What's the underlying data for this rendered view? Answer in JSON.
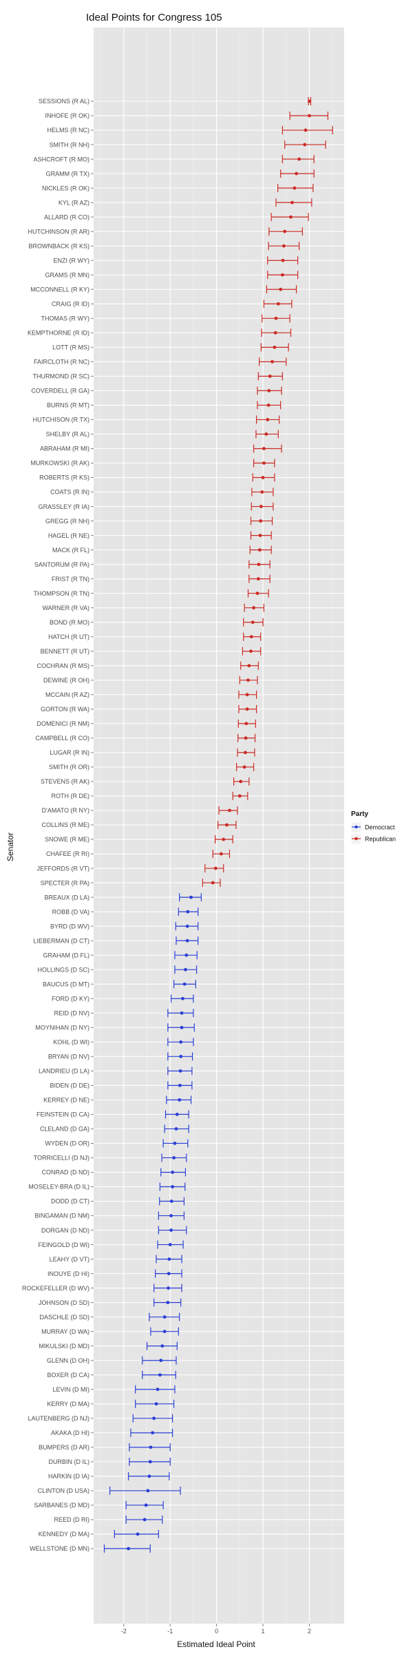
{
  "chart_data": {
    "type": "scatter",
    "title": "Ideal Points for Congress 105",
    "xlabel": "Estimated Ideal Point",
    "ylabel": "Senator",
    "xlim": [
      -2.65,
      2.75
    ],
    "x_ticks": [
      -2,
      -1,
      0,
      1,
      2
    ],
    "x_tick_labels": [
      "-2",
      "-1",
      "0",
      "1",
      "2"
    ],
    "grid": true,
    "legend": {
      "title": "Party",
      "placement": "right",
      "entries": [
        {
          "label": "Democract",
          "color": "#2a3fd6"
        },
        {
          "label": "Republican",
          "color": "#cc2a24"
        }
      ]
    },
    "series": [
      {
        "name": "Democract",
        "color": "#2a3fd6"
      },
      {
        "name": "Republican",
        "color": "#cc2a24"
      }
    ],
    "senators": [
      {
        "label": "SESSIONS (R AL)",
        "party": "R",
        "est": 2.0,
        "lo": 1.98,
        "hi": 2.03
      },
      {
        "label": "INHOFE (R OK)",
        "party": "R",
        "est": 2.0,
        "lo": 1.58,
        "hi": 2.4
      },
      {
        "label": "HELMS (R NC)",
        "party": "R",
        "est": 1.92,
        "lo": 1.42,
        "hi": 2.5
      },
      {
        "label": "SMITH (R NH)",
        "party": "R",
        "est": 1.9,
        "lo": 1.47,
        "hi": 2.35
      },
      {
        "label": "ASHCROFT (R MO)",
        "party": "R",
        "est": 1.78,
        "lo": 1.42,
        "hi": 2.1
      },
      {
        "label": "GRAMM (R TX)",
        "party": "R",
        "est": 1.72,
        "lo": 1.38,
        "hi": 2.1
      },
      {
        "label": "NICKLES (R OK)",
        "party": "R",
        "est": 1.68,
        "lo": 1.32,
        "hi": 2.08
      },
      {
        "label": "KYL (R AZ)",
        "party": "R",
        "est": 1.63,
        "lo": 1.28,
        "hi": 2.05
      },
      {
        "label": "ALLARD (R CO)",
        "party": "R",
        "est": 1.6,
        "lo": 1.18,
        "hi": 1.98
      },
      {
        "label": "HUTCHINSON (R AR)",
        "party": "R",
        "est": 1.47,
        "lo": 1.13,
        "hi": 1.85
      },
      {
        "label": "BROWNBACK (R KS)",
        "party": "R",
        "est": 1.45,
        "lo": 1.12,
        "hi": 1.78
      },
      {
        "label": "ENZI (R WY)",
        "party": "R",
        "est": 1.43,
        "lo": 1.1,
        "hi": 1.75
      },
      {
        "label": "GRAMS (R MN)",
        "party": "R",
        "est": 1.42,
        "lo": 1.1,
        "hi": 1.75
      },
      {
        "label": "MCCONNELL (R KY)",
        "party": "R",
        "est": 1.38,
        "lo": 1.08,
        "hi": 1.72
      },
      {
        "label": "CRAIG (R ID)",
        "party": "R",
        "est": 1.33,
        "lo": 1.02,
        "hi": 1.62
      },
      {
        "label": "THOMAS (R WY)",
        "party": "R",
        "est": 1.28,
        "lo": 0.98,
        "hi": 1.58
      },
      {
        "label": "KEMPTHORNE (R ID)",
        "party": "R",
        "est": 1.27,
        "lo": 0.97,
        "hi": 1.6
      },
      {
        "label": "LOTT (R MS)",
        "party": "R",
        "est": 1.25,
        "lo": 0.96,
        "hi": 1.55
      },
      {
        "label": "FAIRCLOTH (R NC)",
        "party": "R",
        "est": 1.2,
        "lo": 0.92,
        "hi": 1.5
      },
      {
        "label": "THURMOND (R SC)",
        "party": "R",
        "est": 1.15,
        "lo": 0.9,
        "hi": 1.42
      },
      {
        "label": "COVERDELL (R GA)",
        "party": "R",
        "est": 1.13,
        "lo": 0.88,
        "hi": 1.4
      },
      {
        "label": "BURNS (R MT)",
        "party": "R",
        "est": 1.12,
        "lo": 0.88,
        "hi": 1.38
      },
      {
        "label": "HUTCHISON (R TX)",
        "party": "R",
        "est": 1.1,
        "lo": 0.86,
        "hi": 1.35
      },
      {
        "label": "SHELBY (R AL)",
        "party": "R",
        "est": 1.07,
        "lo": 0.85,
        "hi": 1.33
      },
      {
        "label": "ABRAHAM (R MI)",
        "party": "R",
        "est": 1.02,
        "lo": 0.8,
        "hi": 1.4
      },
      {
        "label": "MURKOWSKI (R AK)",
        "party": "R",
        "est": 1.02,
        "lo": 0.8,
        "hi": 1.25
      },
      {
        "label": "ROBERTS (R KS)",
        "party": "R",
        "est": 1.0,
        "lo": 0.78,
        "hi": 1.25
      },
      {
        "label": "COATS (R IN)",
        "party": "R",
        "est": 0.98,
        "lo": 0.76,
        "hi": 1.22
      },
      {
        "label": "GRASSLEY (R IA)",
        "party": "R",
        "est": 0.96,
        "lo": 0.75,
        "hi": 1.22
      },
      {
        "label": "GREGG (R NH)",
        "party": "R",
        "est": 0.95,
        "lo": 0.74,
        "hi": 1.2
      },
      {
        "label": "HAGEL (R NE)",
        "party": "R",
        "est": 0.94,
        "lo": 0.74,
        "hi": 1.18
      },
      {
        "label": "MACK (R FL)",
        "party": "R",
        "est": 0.93,
        "lo": 0.72,
        "hi": 1.18
      },
      {
        "label": "SANTORUM (R PA)",
        "party": "R",
        "est": 0.91,
        "lo": 0.7,
        "hi": 1.15
      },
      {
        "label": "FRIST (R TN)",
        "party": "R",
        "est": 0.9,
        "lo": 0.7,
        "hi": 1.15
      },
      {
        "label": "THOMPSON (R TN)",
        "party": "R",
        "est": 0.88,
        "lo": 0.68,
        "hi": 1.12
      },
      {
        "label": "WARNER (R VA)",
        "party": "R",
        "est": 0.8,
        "lo": 0.6,
        "hi": 1.02
      },
      {
        "label": "BOND (R MO)",
        "party": "R",
        "est": 0.78,
        "lo": 0.58,
        "hi": 1.0
      },
      {
        "label": "HATCH (R UT)",
        "party": "R",
        "est": 0.75,
        "lo": 0.58,
        "hi": 0.95
      },
      {
        "label": "BENNETT (R UT)",
        "party": "R",
        "est": 0.74,
        "lo": 0.56,
        "hi": 0.95
      },
      {
        "label": "COCHRAN (R MS)",
        "party": "R",
        "est": 0.7,
        "lo": 0.52,
        "hi": 0.9
      },
      {
        "label": "DEWINE (R OH)",
        "party": "R",
        "est": 0.68,
        "lo": 0.5,
        "hi": 0.88
      },
      {
        "label": "MCCAIN (R AZ)",
        "party": "R",
        "est": 0.66,
        "lo": 0.48,
        "hi": 0.86
      },
      {
        "label": "GORTON (R WA)",
        "party": "R",
        "est": 0.66,
        "lo": 0.48,
        "hi": 0.86
      },
      {
        "label": "DOMENICI (R NM)",
        "party": "R",
        "est": 0.64,
        "lo": 0.47,
        "hi": 0.84
      },
      {
        "label": "CAMPBELL (R CO)",
        "party": "R",
        "est": 0.63,
        "lo": 0.46,
        "hi": 0.83
      },
      {
        "label": "LUGAR (R IN)",
        "party": "R",
        "est": 0.62,
        "lo": 0.45,
        "hi": 0.82
      },
      {
        "label": "SMITH (R OR)",
        "party": "R",
        "est": 0.6,
        "lo": 0.43,
        "hi": 0.8
      },
      {
        "label": "STEVENS (R AK)",
        "party": "R",
        "est": 0.52,
        "lo": 0.37,
        "hi": 0.7
      },
      {
        "label": "ROTH (R DE)",
        "party": "R",
        "est": 0.5,
        "lo": 0.35,
        "hi": 0.67
      },
      {
        "label": "D'AMATO (R NY)",
        "party": "R",
        "est": 0.28,
        "lo": 0.05,
        "hi": 0.45
      },
      {
        "label": "COLLINS (R ME)",
        "party": "R",
        "est": 0.22,
        "lo": 0.03,
        "hi": 0.42
      },
      {
        "label": "SNOWE (R ME)",
        "party": "R",
        "est": 0.15,
        "lo": -0.03,
        "hi": 0.35
      },
      {
        "label": "CHAFEE (R RI)",
        "party": "R",
        "est": 0.1,
        "lo": -0.08,
        "hi": 0.28
      },
      {
        "label": "JEFFORDS (R VT)",
        "party": "R",
        "est": -0.02,
        "lo": -0.25,
        "hi": 0.15
      },
      {
        "label": "SPECTER (R PA)",
        "party": "R",
        "est": -0.08,
        "lo": -0.3,
        "hi": 0.08
      },
      {
        "label": "BREAUX (D LA)",
        "party": "D",
        "est": -0.55,
        "lo": -0.8,
        "hi": -0.33
      },
      {
        "label": "ROBB (D VA)",
        "party": "D",
        "est": -0.62,
        "lo": -0.82,
        "hi": -0.4
      },
      {
        "label": "BYRD (D WV)",
        "party": "D",
        "est": -0.63,
        "lo": -0.88,
        "hi": -0.4
      },
      {
        "label": "LIEBERMAN (D CT)",
        "party": "D",
        "est": -0.63,
        "lo": -0.87,
        "hi": -0.4
      },
      {
        "label": "GRAHAM (D FL)",
        "party": "D",
        "est": -0.65,
        "lo": -0.9,
        "hi": -0.42
      },
      {
        "label": "HOLLINGS (D SC)",
        "party": "D",
        "est": -0.67,
        "lo": -0.9,
        "hi": -0.43
      },
      {
        "label": "BAUCUS (D MT)",
        "party": "D",
        "est": -0.69,
        "lo": -0.92,
        "hi": -0.45
      },
      {
        "label": "FORD (D KY)",
        "party": "D",
        "est": -0.73,
        "lo": -0.98,
        "hi": -0.5
      },
      {
        "label": "REID (D NV)",
        "party": "D",
        "est": -0.75,
        "lo": -1.05,
        "hi": -0.5
      },
      {
        "label": "MOYNIHAN (D NY)",
        "party": "D",
        "est": -0.75,
        "lo": -1.05,
        "hi": -0.48
      },
      {
        "label": "KOHL (D WI)",
        "party": "D",
        "est": -0.77,
        "lo": -1.05,
        "hi": -0.5
      },
      {
        "label": "BRYAN (D NV)",
        "party": "D",
        "est": -0.77,
        "lo": -1.05,
        "hi": -0.52
      },
      {
        "label": "LANDRIEU (D LA)",
        "party": "D",
        "est": -0.78,
        "lo": -1.05,
        "hi": -0.53
      },
      {
        "label": "BIDEN (D DE)",
        "party": "D",
        "est": -0.79,
        "lo": -1.05,
        "hi": -0.53
      },
      {
        "label": "KERREY (D NE)",
        "party": "D",
        "est": -0.8,
        "lo": -1.08,
        "hi": -0.55
      },
      {
        "label": "FEINSTEIN (D CA)",
        "party": "D",
        "est": -0.85,
        "lo": -1.1,
        "hi": -0.6
      },
      {
        "label": "CLELAND (D GA)",
        "party": "D",
        "est": -0.87,
        "lo": -1.12,
        "hi": -0.6
      },
      {
        "label": "WYDEN (D OR)",
        "party": "D",
        "est": -0.9,
        "lo": -1.15,
        "hi": -0.62
      },
      {
        "label": "TORRICELLI (D NJ)",
        "party": "D",
        "est": -0.92,
        "lo": -1.18,
        "hi": -0.65
      },
      {
        "label": "CONRAD (D ND)",
        "party": "D",
        "est": -0.95,
        "lo": -1.2,
        "hi": -0.67
      },
      {
        "label": "MOSELEY-BRA (D IL)",
        "party": "D",
        "est": -0.95,
        "lo": -1.22,
        "hi": -0.68
      },
      {
        "label": "DODD (D CT)",
        "party": "D",
        "est": -0.97,
        "lo": -1.23,
        "hi": -0.7
      },
      {
        "label": "BINGAMAN (D NM)",
        "party": "D",
        "est": -0.98,
        "lo": -1.25,
        "hi": -0.7
      },
      {
        "label": "DORGAN (D ND)",
        "party": "D",
        "est": -0.98,
        "lo": -1.25,
        "hi": -0.65
      },
      {
        "label": "FEINGOLD (D WI)",
        "party": "D",
        "est": -1.0,
        "lo": -1.27,
        "hi": -0.72
      },
      {
        "label": "LEAHY (D VT)",
        "party": "D",
        "est": -1.02,
        "lo": -1.3,
        "hi": -0.75
      },
      {
        "label": "INOUYE (D HI)",
        "party": "D",
        "est": -1.03,
        "lo": -1.32,
        "hi": -0.75
      },
      {
        "label": "ROCKEFELLER (D WV)",
        "party": "D",
        "est": -1.04,
        "lo": -1.35,
        "hi": -0.75
      },
      {
        "label": "JOHNSON (D SD)",
        "party": "D",
        "est": -1.05,
        "lo": -1.35,
        "hi": -0.77
      },
      {
        "label": "DASCHLE (D SD)",
        "party": "D",
        "est": -1.12,
        "lo": -1.45,
        "hi": -0.8
      },
      {
        "label": "MURRAY (D WA)",
        "party": "D",
        "est": -1.12,
        "lo": -1.42,
        "hi": -0.82
      },
      {
        "label": "MIKULSKI (D MD)",
        "party": "D",
        "est": -1.17,
        "lo": -1.5,
        "hi": -0.85
      },
      {
        "label": "GLENN (D OH)",
        "party": "D",
        "est": -1.2,
        "lo": -1.6,
        "hi": -0.87
      },
      {
        "label": "BOXER (D CA)",
        "party": "D",
        "est": -1.22,
        "lo": -1.6,
        "hi": -0.88
      },
      {
        "label": "LEVIN (D MI)",
        "party": "D",
        "est": -1.27,
        "lo": -1.75,
        "hi": -0.9
      },
      {
        "label": "KERRY (D MA)",
        "party": "D",
        "est": -1.3,
        "lo": -1.75,
        "hi": -0.92
      },
      {
        "label": "LAUTENBERG (D NJ)",
        "party": "D",
        "est": -1.35,
        "lo": -1.8,
        "hi": -0.95
      },
      {
        "label": "AKAKA (D HI)",
        "party": "D",
        "est": -1.38,
        "lo": -1.85,
        "hi": -0.95
      },
      {
        "label": "BUMPERS (D AR)",
        "party": "D",
        "est": -1.42,
        "lo": -1.88,
        "hi": -1.0
      },
      {
        "label": "DURBIN (D IL)",
        "party": "D",
        "est": -1.43,
        "lo": -1.88,
        "hi": -1.0
      },
      {
        "label": "HARKIN (D IA)",
        "party": "D",
        "est": -1.45,
        "lo": -1.9,
        "hi": -1.02
      },
      {
        "label": "CLINTON (D USA)",
        "party": "D",
        "est": -1.48,
        "lo": -2.3,
        "hi": -0.78
      },
      {
        "label": "SARBANES (D MD)",
        "party": "D",
        "est": -1.52,
        "lo": -1.95,
        "hi": -1.15
      },
      {
        "label": "REED (D RI)",
        "party": "D",
        "est": -1.55,
        "lo": -1.95,
        "hi": -1.17
      },
      {
        "label": "KENNEDY (D MA)",
        "party": "D",
        "est": -1.7,
        "lo": -2.2,
        "hi": -1.25
      },
      {
        "label": "WELLSTONE (D MN)",
        "party": "D",
        "est": -1.9,
        "lo": -2.42,
        "hi": -1.43
      }
    ]
  }
}
